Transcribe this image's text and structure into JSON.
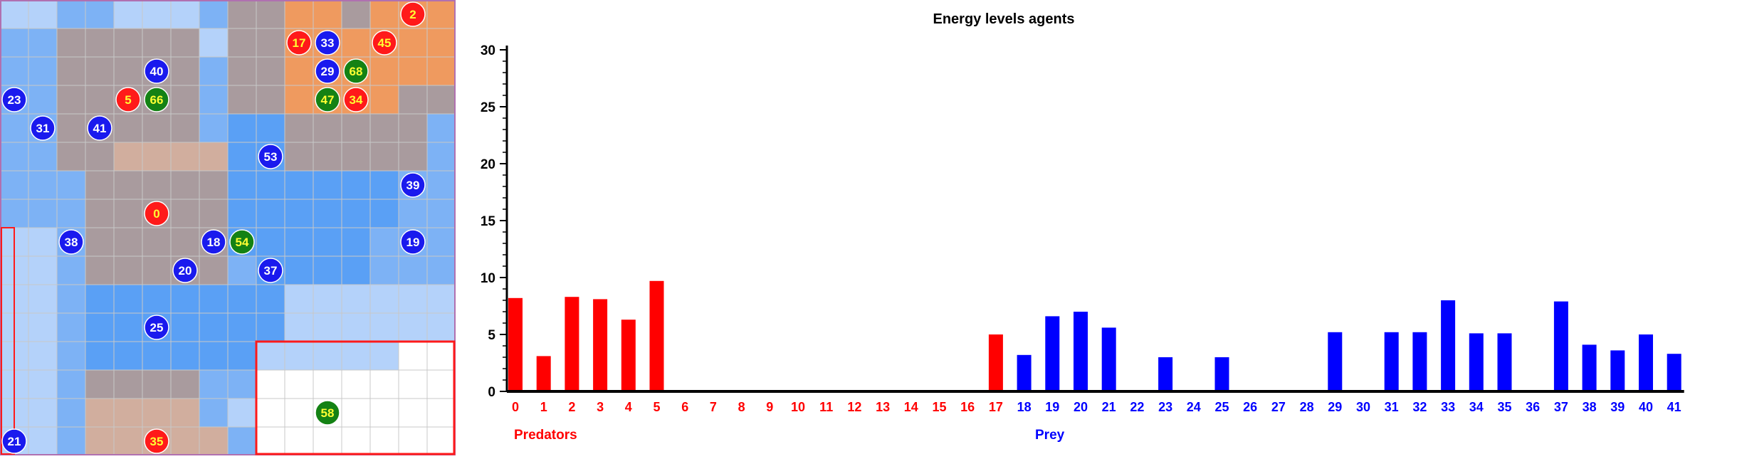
{
  "simulation": {
    "grid": {
      "rows": 16,
      "cols": 16,
      "colors": {
        "deep": "#5aa0f5",
        "mid": "#7db2f5",
        "light": "#b4d2fa",
        "grey": "#a99b9e",
        "tan": "#d1ae9e",
        "orange": "#ef9a5f",
        "white": "#ffffff",
        "outline_red": "#ff1a1a",
        "outline_purple": "#b070b0",
        "gridline": "#c8c8c8"
      },
      "cells": [
        "LLMMLLLMGGOOGOOO",
        "MMGGGGGLGGOOOOOO",
        "MMGGGGGMGGOOOOOO",
        "MMGGGGGMGGOOOOGG",
        "MMGGGGGMDDGGGGGM",
        "MMGGTTTTDDGGGGGM",
        "MMMGGGGGDDDDDDMM",
        "MMMGGGGGDDDDDDMM",
        "LLMGGGGGDDDDDMMM",
        "LLMGGGGGMDDDDMMM",
        "LLMDDDDDDDLLLLLL",
        "LLMDDDDDDDLLLLLL",
        "LLMDDDDDDLLLLLWW",
        "LLMGGGGMMWWWWWWW",
        "LLMTTTTMLWWWWWWW",
        "LLMTTTTTMWWWWWWW"
      ],
      "agents": [
        {
          "id": "2",
          "kind": "predator",
          "row": 0,
          "col": 14
        },
        {
          "id": "17",
          "kind": "predator",
          "row": 1,
          "col": 10
        },
        {
          "id": "33",
          "kind": "prey",
          "row": 1,
          "col": 11
        },
        {
          "id": "45",
          "kind": "predator",
          "row": 1,
          "col": 13
        },
        {
          "id": "40",
          "kind": "prey",
          "row": 2,
          "col": 5
        },
        {
          "id": "29",
          "kind": "prey",
          "row": 2,
          "col": 11
        },
        {
          "id": "68",
          "kind": "plant",
          "row": 2,
          "col": 12
        },
        {
          "id": "23",
          "kind": "prey",
          "row": 3,
          "col": 0
        },
        {
          "id": "5",
          "kind": "predator",
          "row": 3,
          "col": 4
        },
        {
          "id": "66",
          "kind": "plant",
          "row": 3,
          "col": 5
        },
        {
          "id": "47",
          "kind": "plant",
          "row": 3,
          "col": 11
        },
        {
          "id": "34",
          "kind": "predator",
          "row": 3,
          "col": 12
        },
        {
          "id": "31",
          "kind": "prey",
          "row": 4,
          "col": 1
        },
        {
          "id": "41",
          "kind": "prey",
          "row": 4,
          "col": 3
        },
        {
          "id": "53",
          "kind": "prey",
          "row": 5,
          "col": 9
        },
        {
          "id": "39",
          "kind": "prey",
          "row": 6,
          "col": 14
        },
        {
          "id": "0",
          "kind": "predator",
          "row": 7,
          "col": 5
        },
        {
          "id": "38",
          "kind": "prey",
          "row": 8,
          "col": 2
        },
        {
          "id": "18",
          "kind": "prey",
          "row": 8,
          "col": 7
        },
        {
          "id": "54",
          "kind": "plant",
          "row": 8,
          "col": 8
        },
        {
          "id": "19",
          "kind": "prey",
          "row": 8,
          "col": 14
        },
        {
          "id": "20",
          "kind": "prey",
          "row": 9,
          "col": 6
        },
        {
          "id": "37",
          "kind": "prey",
          "row": 9,
          "col": 9
        },
        {
          "id": "25",
          "kind": "prey",
          "row": 11,
          "col": 5
        },
        {
          "id": "58",
          "kind": "plant",
          "row": 14,
          "col": 11
        },
        {
          "id": "21",
          "kind": "prey",
          "row": 15,
          "col": 0
        },
        {
          "id": "35",
          "kind": "predator",
          "row": 15,
          "col": 5
        }
      ],
      "agent_colors": {
        "predator": "#ff1a1a",
        "prey": "#1a1aee",
        "plant": "#148214",
        "label": "#ffff33",
        "label_on_prey": "#ffffff"
      }
    }
  },
  "chart_data": {
    "type": "bar",
    "title": "Energy levels agents",
    "categories": [
      "0",
      "1",
      "2",
      "3",
      "4",
      "5",
      "6",
      "7",
      "8",
      "9",
      "10",
      "11",
      "12",
      "13",
      "14",
      "15",
      "16",
      "17",
      "18",
      "19",
      "20",
      "21",
      "22",
      "23",
      "24",
      "25",
      "26",
      "27",
      "28",
      "29",
      "30",
      "31",
      "32",
      "33",
      "34",
      "35",
      "36",
      "37",
      "38",
      "39",
      "40",
      "41"
    ],
    "series": [
      {
        "name": "Predators",
        "color": "#ff0000",
        "values": [
          8.2,
          3.1,
          8.3,
          8.1,
          6.3,
          9.7,
          0,
          0,
          0,
          0,
          0,
          0,
          0,
          0,
          0,
          0,
          0,
          5.0,
          0,
          0,
          0,
          0,
          0,
          0,
          0,
          0,
          0,
          0,
          0,
          0,
          0,
          0,
          0,
          0,
          0,
          0,
          0,
          0,
          0,
          0,
          0,
          0
        ]
      },
      {
        "name": "Prey",
        "color": "#0000ff",
        "values": [
          0,
          0,
          0,
          0,
          0,
          0,
          0,
          0,
          0,
          0,
          0,
          0,
          0,
          0,
          0,
          0,
          0,
          0,
          3.2,
          6.6,
          7.0,
          5.6,
          0,
          3.0,
          0,
          3.0,
          0,
          0,
          0,
          5.2,
          0,
          5.2,
          5.2,
          8.0,
          5.1,
          5.1,
          0,
          7.9,
          4.1,
          3.6,
          5.0,
          3.3
        ]
      }
    ],
    "category_label_colors": {
      "predator_range": [
        0,
        17
      ],
      "predator_color": "#ff0000",
      "prey_color": "#0000ff"
    },
    "ylim": [
      0,
      30
    ],
    "yticks": [
      0,
      5,
      10,
      15,
      20,
      25,
      30
    ],
    "grid": false,
    "group_labels": {
      "predators": "Predators",
      "prey": "Prey"
    }
  }
}
